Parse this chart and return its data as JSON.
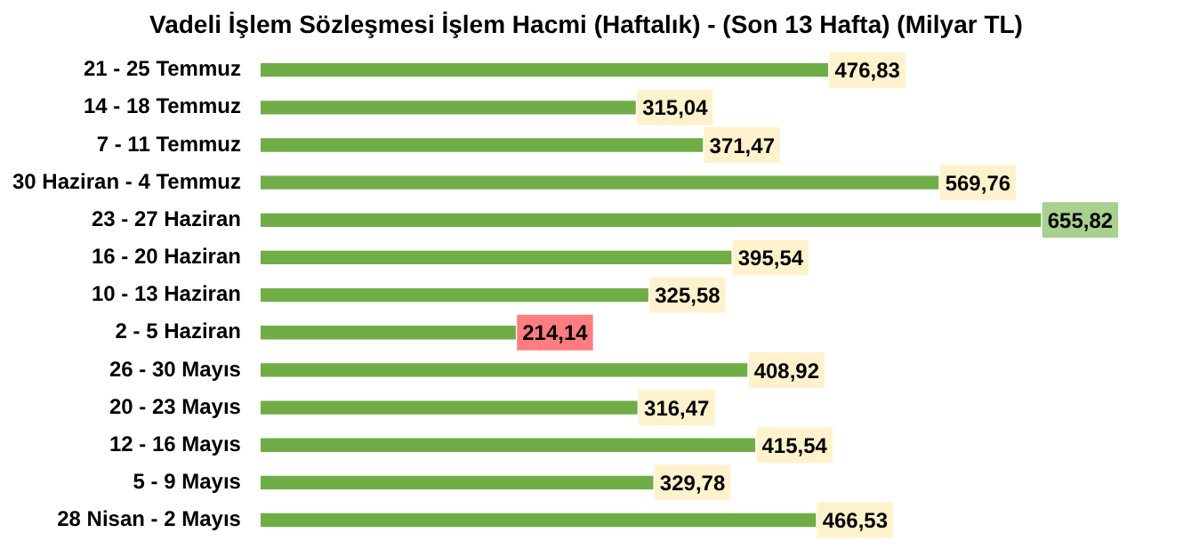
{
  "chart_data": {
    "type": "bar",
    "orientation": "horizontal",
    "title": "Vadeli İşlem Sözleşmesi İşlem Hacmi (Haftalık) - (Son 13 Hafta) (Milyar TL)",
    "categories": [
      "21 - 25 Temmuz",
      "14 - 18 Temmuz",
      "7 - 11 Temmuz",
      "30 Haziran - 4 Temmuz",
      "23 - 27 Haziran",
      "16 - 20 Haziran",
      "10 - 13 Haziran",
      "2 - 5 Haziran",
      "26 - 30 Mayıs",
      "20 - 23 Mayıs",
      "12 - 16 Mayıs",
      "5 - 9 Mayıs",
      "28 Nisan - 2 Mayıs"
    ],
    "values": [
      476.83,
      315.04,
      371.47,
      569.76,
      655.82,
      395.54,
      325.58,
      214.14,
      408.92,
      316.47,
      415.54,
      329.78,
      466.53
    ],
    "value_labels": [
      "476,83",
      "315,04",
      "371,47",
      "569,76",
      "655,82",
      "395,54",
      "325,58",
      "214,14",
      "408,92",
      "316,47",
      "415,54",
      "329,78",
      "466,53"
    ],
    "color": "#70ad47",
    "legend": false
  }
}
